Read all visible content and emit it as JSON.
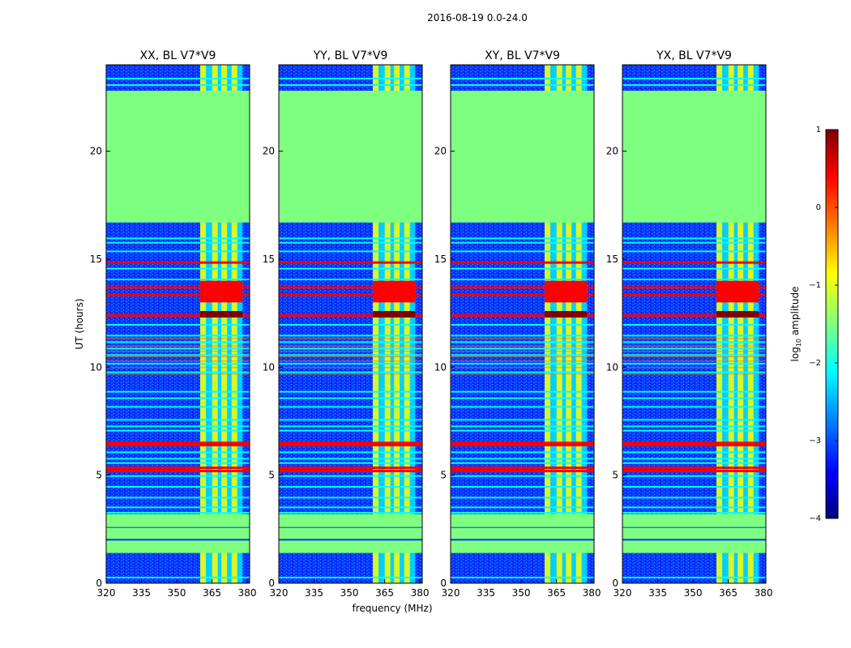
{
  "figure": {
    "suptitle": "2016-08-19 0.0-24.0",
    "xlabel": "frequency (MHz)",
    "ylabel": "UT (hours)"
  },
  "chart_data": {
    "type": "heatmap",
    "x_range": [
      320,
      381
    ],
    "y_range": [
      0,
      24
    ],
    "xticks": [
      "320",
      "335",
      "350",
      "365",
      "380"
    ],
    "yticks": [
      "0",
      "5",
      "10",
      "15",
      "20"
    ],
    "panels": [
      {
        "title": "XX, BL V7*V9"
      },
      {
        "title": "YY, BL V7*V9"
      },
      {
        "title": "XY, BL V7*V9"
      },
      {
        "title": "YX, BL V7*V9"
      }
    ],
    "rfi_band_mhz": [
      360,
      378
    ],
    "flagged_blocks_hours": [
      [
        16.7,
        22.8
      ],
      [
        1.4,
        3.2
      ]
    ],
    "strong_rfi_hours": [
      12.5,
      13.4,
      13.7,
      6.5,
      5.3
    ],
    "colorbar": {
      "label": "log",
      "label_sub": "10",
      "label_rest": " amplitude",
      "range": [
        -4,
        1
      ],
      "ticks": [
        "1",
        "0",
        "−1",
        "−2",
        "−3",
        "−4"
      ],
      "colors": [
        "#7f0000",
        "#ff0000",
        "#ff7f00",
        "#ffff00",
        "#7fff7f",
        "#00ffff",
        "#007fff",
        "#0000ff",
        "#00007f"
      ]
    }
  }
}
